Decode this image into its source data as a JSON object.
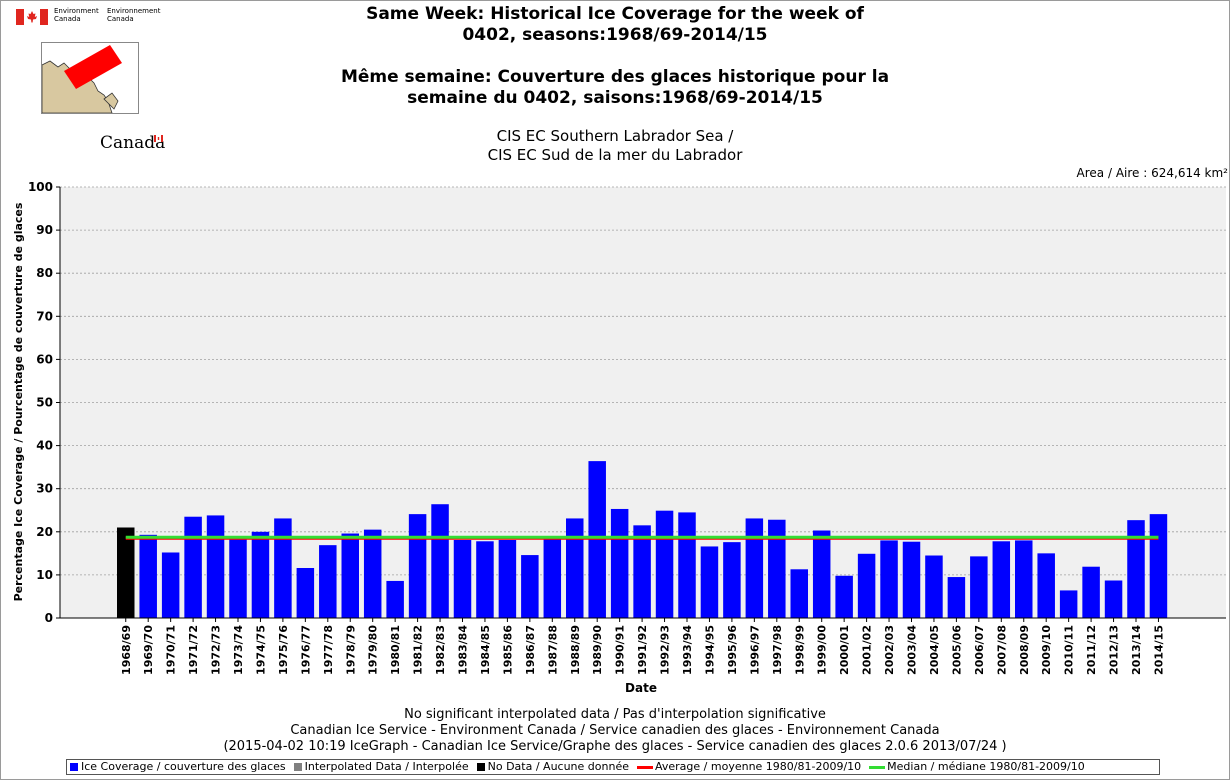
{
  "header": {
    "gov_en": "Environment\nCanada",
    "gov_fr": "Environnement\nCanada",
    "wordmark": "Canada"
  },
  "title_lines": [
    "Same Week: Historical Ice Coverage for the week of",
    "0402, seasons:1968/69-2014/15",
    "",
    "Même semaine: Couverture des glaces historique pour la",
    "semaine du 0402, saisons:1968/69-2014/15"
  ],
  "subtitle_lines": [
    "CIS EC Southern Labrador Sea /",
    "CIS EC Sud de la mer du Labrador"
  ],
  "area_label": "Area / Aire : 624,614 km²",
  "footer_lines": [
    "No significant interpolated data / Pas d'interpolation significative",
    "Canadian Ice Service - Environment Canada / Service canadien des glaces - Environnement Canada",
    "(2015-04-02 10:19 IceGraph - Canadian Ice Service/Graphe des glaces - Service canadien des glaces 2.0.6 2013/07/24 )"
  ],
  "colors": {
    "ice": "#0000ff",
    "interpolated": "#808080",
    "nodata": "#000000",
    "average": "#ff0000",
    "median": "#33dd33",
    "plot_bg": "#f0f0f0",
    "grid": "#a0a0a0",
    "flag_red": "#e0261f",
    "map_land": "#d8c8a0",
    "map_box_red": "#ff0000"
  },
  "legend": [
    {
      "label": "Ice Coverage / couverture des glaces",
      "kind": "box",
      "color_key": "ice"
    },
    {
      "label": "Interpolated Data / Interpolée",
      "kind": "box",
      "color_key": "interpolated"
    },
    {
      "label": "No Data / Aucune donnée",
      "kind": "box",
      "color_key": "nodata"
    },
    {
      "label": "Average / moyenne 1980/81-2009/10",
      "kind": "line",
      "color_key": "average"
    },
    {
      "label": "Median / médiane 1980/81-2009/10",
      "kind": "line",
      "color_key": "median"
    }
  ],
  "chart_data": {
    "type": "bar",
    "xlabel": "Date",
    "ylabel": "Percentage Ice Coverage / Pourcentage de couverture de glaces",
    "ylim": [
      0,
      100
    ],
    "yticks": [
      0,
      10,
      20,
      30,
      40,
      50,
      60,
      70,
      80,
      90,
      100
    ],
    "grid": true,
    "legend_position": "bottom",
    "categories": [
      "1968/69",
      "1969/70",
      "1970/71",
      "1971/72",
      "1972/73",
      "1973/74",
      "1974/75",
      "1975/76",
      "1976/77",
      "1977/78",
      "1978/79",
      "1979/80",
      "1980/81",
      "1981/82",
      "1982/83",
      "1983/84",
      "1984/85",
      "1985/86",
      "1986/87",
      "1987/88",
      "1988/89",
      "1989/90",
      "1990/91",
      "1991/92",
      "1992/93",
      "1993/94",
      "1994/95",
      "1995/96",
      "1996/97",
      "1997/98",
      "1998/99",
      "1999/00",
      "2000/01",
      "2001/02",
      "2002/03",
      "2003/04",
      "2004/05",
      "2005/06",
      "2006/07",
      "2007/08",
      "2008/09",
      "2009/10",
      "2010/11",
      "2011/12",
      "2012/13",
      "2013/14",
      "2014/15"
    ],
    "series": [
      {
        "name": "Ice Coverage / couverture des glaces",
        "values": [
          0,
          19.3,
          15.2,
          23.5,
          23.8,
          18.2,
          20.0,
          23.1,
          11.6,
          16.9,
          19.6,
          20.5,
          8.6,
          24.1,
          26.4,
          18.1,
          17.8,
          18.1,
          14.6,
          18.4,
          23.1,
          36.4,
          25.3,
          21.5,
          24.9,
          24.5,
          16.6,
          17.6,
          23.1,
          22.8,
          11.3,
          20.3,
          9.8,
          14.9,
          18.0,
          17.7,
          14.5,
          9.5,
          14.3,
          17.8,
          18.0,
          15.0,
          6.4,
          11.9,
          8.7,
          22.7,
          24.1
        ]
      },
      {
        "name": "No Data / Aucune donnée",
        "values": [
          21.0,
          0,
          0,
          0,
          0,
          0,
          0,
          0,
          0,
          0,
          0,
          0,
          0,
          0,
          0,
          0,
          0,
          0,
          0,
          0,
          0,
          0,
          0,
          0,
          0,
          0,
          0,
          0,
          0,
          0,
          0,
          0,
          0,
          0,
          0,
          0,
          0,
          0,
          0,
          0,
          0,
          0,
          0,
          0,
          0,
          0,
          0
        ]
      }
    ],
    "average": 18.5,
    "median": 18.5
  }
}
